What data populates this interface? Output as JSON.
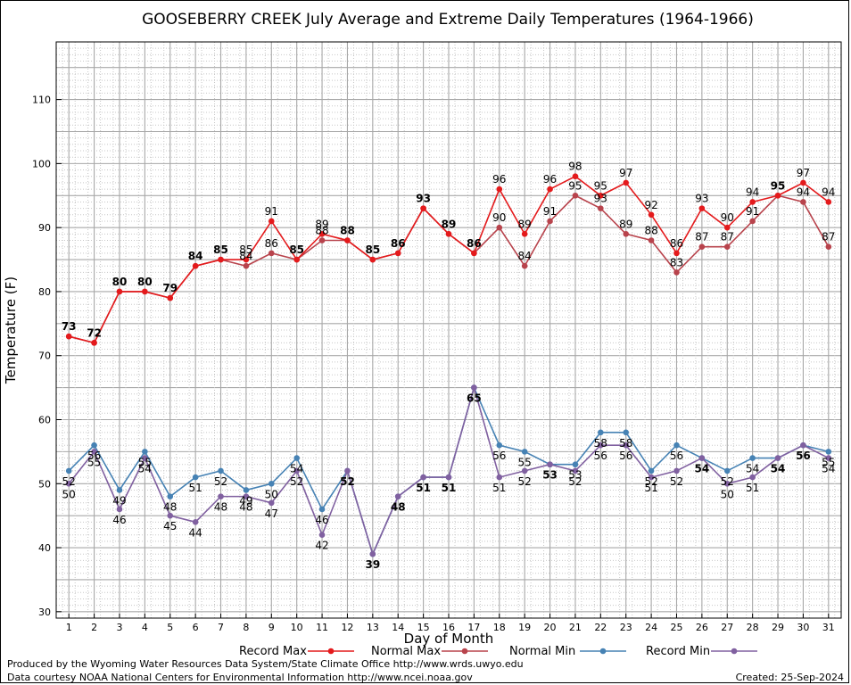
{
  "chart_data": {
    "type": "line",
    "title": "GOOSEBERRY CREEK July Average and Extreme Daily Temperatures (1964-1966)",
    "xlabel": "Day of Month",
    "ylabel": "Temperature (F)",
    "x": [
      1,
      2,
      3,
      4,
      5,
      6,
      7,
      8,
      9,
      10,
      11,
      12,
      13,
      14,
      15,
      16,
      17,
      18,
      19,
      20,
      21,
      22,
      23,
      24,
      25,
      26,
      27,
      28,
      29,
      30,
      31
    ],
    "xlim": [
      0.5,
      31.5
    ],
    "ylim": [
      29,
      119
    ],
    "yticks": [
      30,
      40,
      50,
      60,
      70,
      80,
      90,
      100,
      110
    ],
    "grid": true,
    "legend_position": "bottom",
    "series": [
      {
        "name": "Record Max",
        "color": "#e41a1c",
        "values": [
          73,
          72,
          80,
          80,
          79,
          84,
          85,
          85,
          91,
          85,
          89,
          88,
          85,
          86,
          93,
          89,
          86,
          96,
          89,
          96,
          98,
          95,
          97,
          92,
          86,
          93,
          90,
          94,
          95,
          97,
          94
        ]
      },
      {
        "name": "Normal Max",
        "color": "#b8434c",
        "values": [
          73,
          72,
          80,
          80,
          79,
          84,
          85,
          84,
          86,
          85,
          88,
          88,
          85,
          86,
          93,
          89,
          86,
          90,
          84,
          91,
          95,
          93,
          89,
          88,
          83,
          87,
          87,
          91,
          95,
          94,
          87
        ]
      },
      {
        "name": "Normal Min",
        "color": "#4682b4",
        "values": [
          52,
          56,
          49,
          55,
          48,
          51,
          52,
          49,
          50,
          54,
          46,
          52,
          39,
          48,
          51,
          51,
          65,
          56,
          55,
          53,
          53,
          58,
          58,
          52,
          56,
          54,
          52,
          54,
          54,
          56,
          55
        ]
      },
      {
        "name": "Record Min",
        "color": "#8060a0",
        "values": [
          50,
          55,
          46,
          54,
          45,
          44,
          48,
          48,
          47,
          52,
          42,
          52,
          39,
          48,
          51,
          51,
          65,
          51,
          52,
          53,
          52,
          56,
          56,
          51,
          52,
          54,
          50,
          51,
          54,
          56,
          54
        ]
      }
    ]
  },
  "footer": {
    "producer": "Produced by the Wyoming Water Resources Data System/State Climate Office http://www.wrds.uwyo.edu",
    "source": "Data courtesy NOAA National Centers for Environmental Information http://www.ncei.noaa.gov",
    "created": "Created:  25-Sep-2024"
  }
}
